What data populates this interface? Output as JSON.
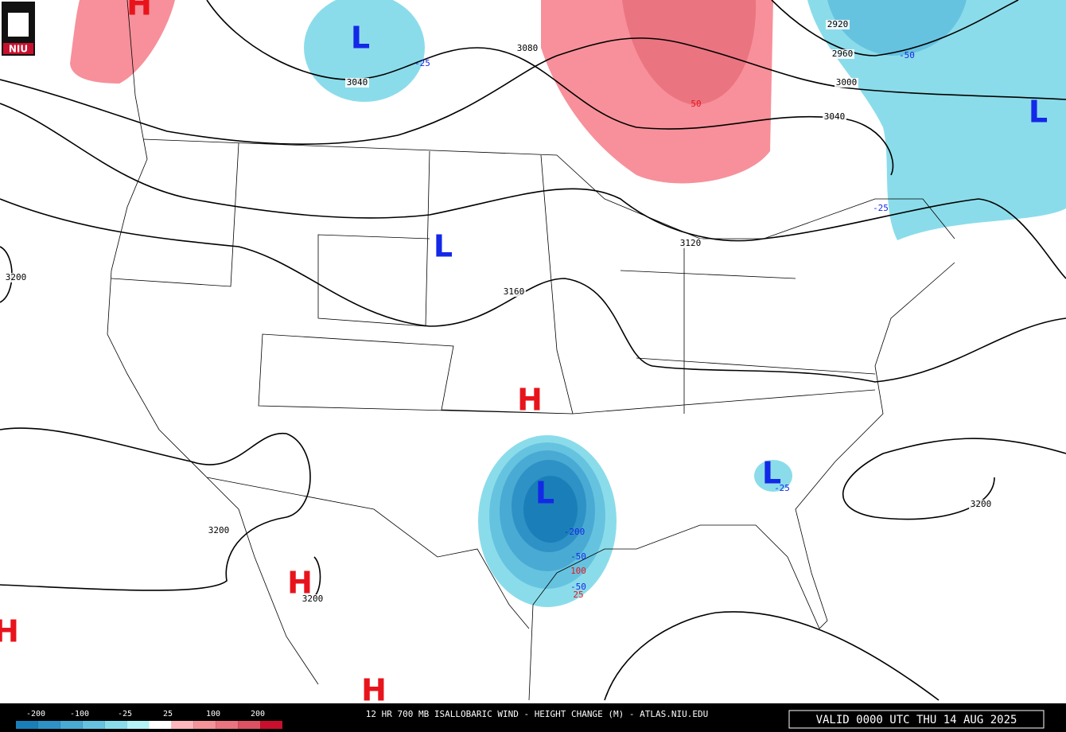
{
  "logo": "NIU",
  "centers": [
    {
      "label": "H",
      "color": "#e8141c"
    },
    {
      "label": "L",
      "color": "#1428e8"
    },
    {
      "label": "L",
      "color": "#1428e8"
    },
    {
      "label": "L",
      "color": "#1428e8"
    },
    {
      "label": "H",
      "color": "#e8141c"
    },
    {
      "label": "L",
      "color": "#1428e8"
    },
    {
      "label": "L",
      "color": "#1428e8"
    },
    {
      "label": "H",
      "color": "#e8141c"
    },
    {
      "label": "H",
      "color": "#e8141c"
    },
    {
      "label": "H",
      "color": "#e8141c"
    }
  ],
  "height_labels": [
    3080,
    3040,
    2920,
    2960,
    3000,
    3040,
    3120,
    3160,
    3200,
    3200,
    3200,
    3200
  ],
  "change_labels": [
    -25,
    -50,
    50,
    -25,
    -25,
    -200,
    -50,
    100,
    -50,
    25
  ],
  "colorbar": {
    "labels": [
      -200,
      -100,
      -25,
      25,
      100,
      200
    ],
    "colors": [
      "#1a7fb8",
      "#2f92c6",
      "#49aad4",
      "#66c3e0",
      "#8bdcea",
      "#b4f3f6",
      "#ffffff",
      "#ffb7bc",
      "#f5939b",
      "#ea7480",
      "#dc5263",
      "#c8102e"
    ]
  },
  "title": "12 HR 700 MB ISALLOBARIC WIND - HEIGHT CHANGE (M) - ATLAS.NIU.EDU",
  "valid": "VALID 0000 UTC THU 14 AUG 2025"
}
